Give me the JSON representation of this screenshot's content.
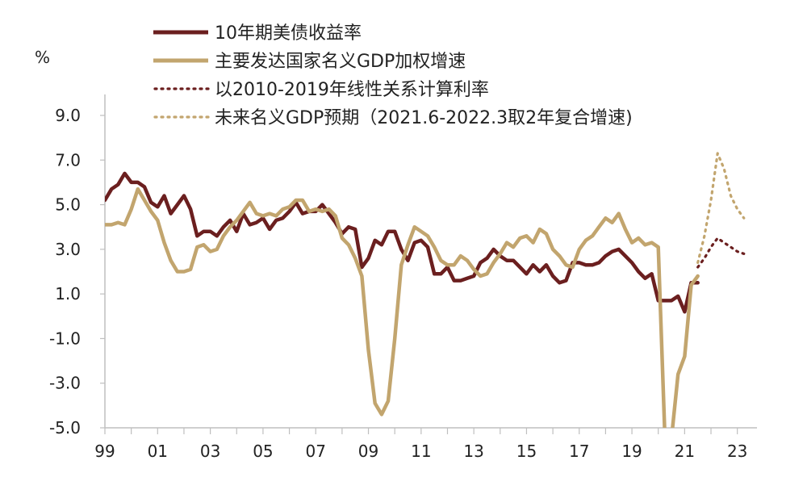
{
  "chart_data": {
    "type": "line",
    "unit_label": "%",
    "ylim": [
      -5.0,
      9.0
    ],
    "xlim": [
      1999.0,
      2023.5
    ],
    "y_ticks": [
      9.0,
      7.0,
      5.0,
      3.0,
      1.0,
      -1.0,
      -3.0,
      -5.0
    ],
    "y_tick_labels": [
      "9.0",
      "7.0",
      "5.0",
      "3.0",
      "1.0",
      "-1.0",
      "-3.0",
      "-5.0"
    ],
    "x_ticks": [
      1999,
      2001,
      2003,
      2005,
      2007,
      2009,
      2011,
      2013,
      2015,
      2017,
      2019,
      2021,
      2023
    ],
    "x_tick_labels": [
      "99",
      "01",
      "03",
      "05",
      "07",
      "09",
      "11",
      "13",
      "15",
      "17",
      "19",
      "21",
      "23"
    ],
    "grid": false,
    "legend_position": "top",
    "series": [
      {
        "name": "10年期美债收益率",
        "color": "#6b1f1f",
        "style": "solid",
        "x": [
          1999.0,
          1999.25,
          1999.5,
          1999.75,
          2000.0,
          2000.25,
          2000.5,
          2000.75,
          2001.0,
          2001.25,
          2001.5,
          2001.75,
          2002.0,
          2002.25,
          2002.5,
          2002.75,
          2003.0,
          2003.25,
          2003.5,
          2003.75,
          2004.0,
          2004.25,
          2004.5,
          2004.75,
          2005.0,
          2005.25,
          2005.5,
          2005.75,
          2006.0,
          2006.25,
          2006.5,
          2006.75,
          2007.0,
          2007.25,
          2007.5,
          2007.75,
          2008.0,
          2008.25,
          2008.5,
          2008.75,
          2009.0,
          2009.25,
          2009.5,
          2009.75,
          2010.0,
          2010.25,
          2010.5,
          2010.75,
          2011.0,
          2011.25,
          2011.5,
          2011.75,
          2012.0,
          2012.25,
          2012.5,
          2012.75,
          2013.0,
          2013.25,
          2013.5,
          2013.75,
          2014.0,
          2014.25,
          2014.5,
          2014.75,
          2015.0,
          2015.25,
          2015.5,
          2015.75,
          2016.0,
          2016.25,
          2016.5,
          2016.75,
          2017.0,
          2017.25,
          2017.5,
          2017.75,
          2018.0,
          2018.25,
          2018.5,
          2018.75,
          2019.0,
          2019.25,
          2019.5,
          2019.75,
          2020.0,
          2020.25,
          2020.5,
          2020.75,
          2021.0,
          2021.25,
          2021.5
        ],
        "values": [
          5.2,
          5.7,
          5.9,
          6.4,
          6.0,
          6.0,
          5.8,
          5.1,
          4.9,
          5.4,
          4.6,
          5.0,
          5.4,
          4.8,
          3.6,
          3.8,
          3.8,
          3.6,
          4.0,
          4.3,
          3.8,
          4.6,
          4.1,
          4.2,
          4.4,
          3.9,
          4.3,
          4.4,
          4.7,
          5.1,
          4.6,
          4.7,
          4.7,
          5.0,
          4.6,
          4.2,
          3.7,
          4.0,
          3.9,
          2.2,
          2.6,
          3.4,
          3.2,
          3.8,
          3.8,
          3.0,
          2.5,
          3.3,
          3.4,
          3.1,
          1.9,
          1.9,
          2.2,
          1.6,
          1.6,
          1.7,
          1.8,
          2.4,
          2.6,
          3.0,
          2.7,
          2.5,
          2.5,
          2.2,
          1.9,
          2.3,
          2.0,
          2.3,
          1.8,
          1.5,
          1.6,
          2.4,
          2.4,
          2.3,
          2.3,
          2.4,
          2.7,
          2.9,
          3.0,
          2.7,
          2.4,
          2.0,
          1.7,
          1.9,
          0.7,
          0.7,
          0.7,
          0.9,
          0.2,
          1.5,
          1.5
        ]
      },
      {
        "name": "主要发达国家名义GDP加权增速",
        "color": "#c2a56e",
        "style": "solid",
        "x": [
          1999.0,
          1999.25,
          1999.5,
          1999.75,
          2000.0,
          2000.25,
          2000.5,
          2000.75,
          2001.0,
          2001.25,
          2001.5,
          2001.75,
          2002.0,
          2002.25,
          2002.5,
          2002.75,
          2003.0,
          2003.25,
          2003.5,
          2003.75,
          2004.0,
          2004.25,
          2004.5,
          2004.75,
          2005.0,
          2005.25,
          2005.5,
          2005.75,
          2006.0,
          2006.25,
          2006.5,
          2006.75,
          2007.0,
          2007.25,
          2007.5,
          2007.75,
          2008.0,
          2008.25,
          2008.5,
          2008.75,
          2009.0,
          2009.25,
          2009.5,
          2009.75,
          2010.0,
          2010.25,
          2010.5,
          2010.75,
          2011.0,
          2011.25,
          2011.5,
          2011.75,
          2012.0,
          2012.25,
          2012.5,
          2012.75,
          2013.0,
          2013.25,
          2013.5,
          2013.75,
          2014.0,
          2014.25,
          2014.5,
          2014.75,
          2015.0,
          2015.25,
          2015.5,
          2015.75,
          2016.0,
          2016.25,
          2016.5,
          2016.75,
          2017.0,
          2017.25,
          2017.5,
          2017.75,
          2018.0,
          2018.25,
          2018.5,
          2018.75,
          2019.0,
          2019.25,
          2019.5,
          2019.75,
          2020.0,
          2020.25,
          2020.5,
          2020.75,
          2021.0,
          2021.25,
          2021.5
        ],
        "values": [
          4.1,
          4.1,
          4.2,
          4.1,
          4.8,
          5.7,
          5.2,
          4.7,
          4.3,
          3.3,
          2.5,
          2.0,
          2.0,
          2.1,
          3.1,
          3.2,
          2.9,
          3.0,
          3.6,
          4.0,
          4.3,
          4.7,
          5.1,
          4.6,
          4.5,
          4.6,
          4.5,
          4.8,
          4.9,
          5.2,
          5.2,
          4.7,
          4.8,
          4.7,
          4.8,
          4.5,
          3.5,
          3.2,
          2.6,
          1.8,
          -1.5,
          -3.9,
          -4.4,
          -3.8,
          -1.0,
          2.3,
          3.2,
          4.0,
          3.8,
          3.6,
          3.1,
          2.5,
          2.3,
          2.3,
          2.7,
          2.5,
          2.1,
          1.8,
          1.9,
          2.4,
          2.8,
          3.3,
          3.1,
          3.5,
          3.6,
          3.3,
          3.9,
          3.7,
          3.0,
          2.7,
          2.3,
          2.2,
          3.0,
          3.4,
          3.6,
          4.0,
          4.4,
          4.2,
          4.6,
          3.9,
          3.3,
          3.5,
          3.2,
          3.3,
          3.1,
          -5.4,
          -5.5,
          -2.6,
          -1.8,
          1.4,
          1.8
        ]
      },
      {
        "name": "以2010-2019年线性关系计算利率",
        "color": "#6b1f1f",
        "style": "dotted",
        "x": [
          2021.5,
          2021.75,
          2022.0,
          2022.25,
          2022.5,
          2022.75,
          2023.0,
          2023.25
        ],
        "values": [
          2.2,
          2.6,
          3.1,
          3.5,
          3.3,
          3.1,
          2.9,
          2.8
        ]
      },
      {
        "name": "未来名义GDP预期（2021.6-2022.3取2年复合增速)",
        "color": "#c2a56e",
        "style": "dotted",
        "x": [
          2021.5,
          2021.75,
          2022.0,
          2022.25,
          2022.5,
          2022.75,
          2023.0,
          2023.25
        ],
        "values": [
          2.4,
          3.6,
          5.2,
          7.3,
          6.6,
          5.4,
          4.8,
          4.4
        ]
      }
    ]
  }
}
